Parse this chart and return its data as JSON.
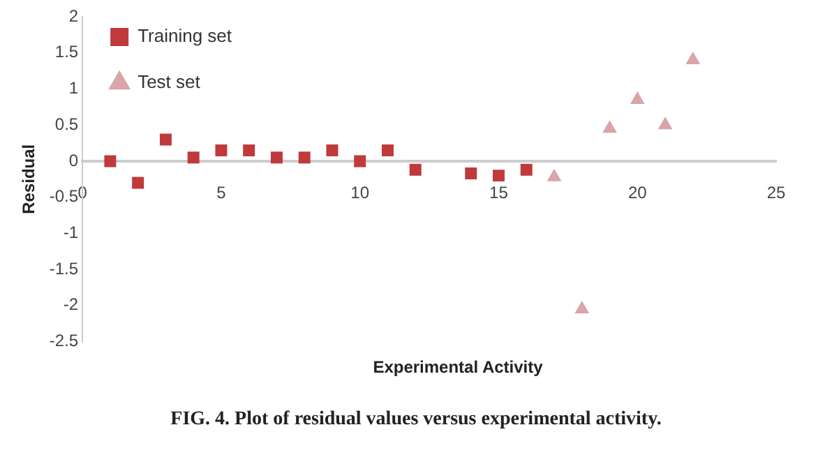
{
  "chart_data": {
    "type": "scatter",
    "xlabel": "Experimental Activity",
    "ylabel": "Residual",
    "annotations": [
      "FIG. 4. Plot of residual values versus experimental activity."
    ],
    "series": [
      {
        "name": "Training set",
        "color": "#c0393b",
        "marker": "square",
        "x": [
          1,
          2,
          3,
          4,
          5,
          6,
          7,
          8,
          9,
          10,
          11,
          12,
          14,
          15,
          16
        ],
        "values": [
          0,
          -0.3,
          0.3,
          0.05,
          0.15,
          0.15,
          0.05,
          0.05,
          0.15,
          0,
          0.15,
          -0.12,
          -0.17,
          -0.2,
          -0.12
        ]
      },
      {
        "name": "Test set",
        "color": "#d9a5a8",
        "marker": "triangle",
        "x": [
          17,
          18,
          19,
          20,
          21,
          22
        ],
        "values": [
          -0.22,
          -2.05,
          0.45,
          0.85,
          0.5,
          1.4
        ]
      }
    ],
    "xlim": [
      0,
      25
    ],
    "xticks": [
      0,
      5,
      10,
      15,
      20,
      25
    ],
    "ylim": [
      -2.5,
      2
    ],
    "yticks": [
      -2.5,
      -2,
      -1.5,
      -1,
      -0.5,
      0,
      0.5,
      1,
      1.5,
      2
    ],
    "grid": false,
    "legend": "top left"
  }
}
